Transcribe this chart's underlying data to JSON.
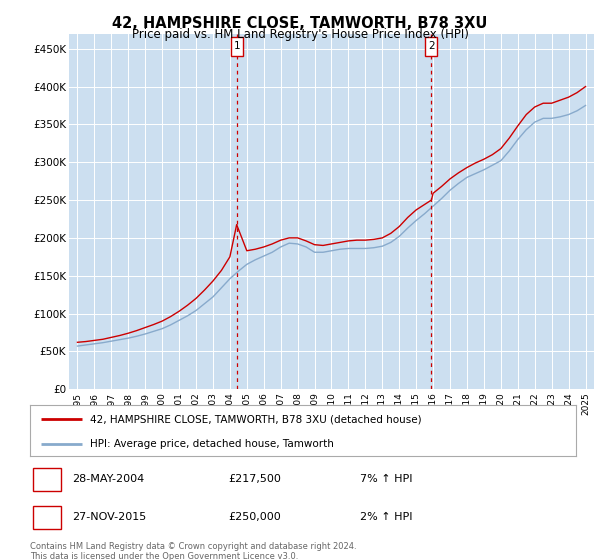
{
  "title": "42, HAMPSHIRE CLOSE, TAMWORTH, B78 3XU",
  "subtitle": "Price paid vs. HM Land Registry's House Price Index (HPI)",
  "ylabel_ticks": [
    "£0",
    "£50K",
    "£100K",
    "£150K",
    "£200K",
    "£250K",
    "£300K",
    "£350K",
    "£400K",
    "£450K"
  ],
  "ytick_values": [
    0,
    50000,
    100000,
    150000,
    200000,
    250000,
    300000,
    350000,
    400000,
    450000
  ],
  "ylim": [
    0,
    470000
  ],
  "xlim_start": 1994.5,
  "xlim_end": 2025.5,
  "background_color": "#ffffff",
  "plot_bg_color": "#ccdff0",
  "grid_color": "#ffffff",
  "red_line_color": "#cc0000",
  "blue_line_color": "#88aacc",
  "transaction1_x": 2004.4,
  "transaction1_y": 217500,
  "transaction1_label": "1",
  "transaction1_date": "28-MAY-2004",
  "transaction1_price": "£217,500",
  "transaction1_hpi": "7% ↑ HPI",
  "transaction2_x": 2015.9,
  "transaction2_y": 250000,
  "transaction2_label": "2",
  "transaction2_date": "27-NOV-2015",
  "transaction2_price": "£250,000",
  "transaction2_hpi": "2% ↑ HPI",
  "legend_line1": "42, HAMPSHIRE CLOSE, TAMWORTH, B78 3XU (detached house)",
  "legend_line2": "HPI: Average price, detached house, Tamworth",
  "footer1": "Contains HM Land Registry data © Crown copyright and database right 2024.",
  "footer2": "This data is licensed under the Open Government Licence v3.0.",
  "hpi_years": [
    1995,
    1995.5,
    1996,
    1996.5,
    1997,
    1997.5,
    1998,
    1998.5,
    1999,
    1999.5,
    2000,
    2000.5,
    2001,
    2001.5,
    2002,
    2002.5,
    2003,
    2003.5,
    2004,
    2004.5,
    2005,
    2005.5,
    2006,
    2006.5,
    2007,
    2007.5,
    2008,
    2008.5,
    2009,
    2009.5,
    2010,
    2010.5,
    2011,
    2011.5,
    2012,
    2012.5,
    2013,
    2013.5,
    2014,
    2014.5,
    2015,
    2015.5,
    2016,
    2016.5,
    2017,
    2017.5,
    2018,
    2018.5,
    2019,
    2019.5,
    2020,
    2020.5,
    2021,
    2021.5,
    2022,
    2022.5,
    2023,
    2023.5,
    2024,
    2024.5,
    2025
  ],
  "hpi_values": [
    57000,
    58500,
    60000,
    61500,
    63500,
    65500,
    67500,
    70000,
    73000,
    76500,
    80000,
    85000,
    91000,
    97000,
    104000,
    113000,
    122000,
    134000,
    146000,
    156000,
    165000,
    171000,
    176000,
    181000,
    188000,
    193000,
    192000,
    188000,
    181000,
    181000,
    183000,
    185000,
    186000,
    186000,
    186000,
    187000,
    189000,
    194000,
    202000,
    213000,
    223000,
    232000,
    242000,
    252000,
    263000,
    272000,
    280000,
    285000,
    290000,
    296000,
    302000,
    315000,
    330000,
    343000,
    353000,
    358000,
    358000,
    360000,
    363000,
    368000,
    375000
  ],
  "price_years": [
    1995,
    1995.5,
    1996,
    1996.5,
    1997,
    1997.5,
    1998,
    1998.5,
    1999,
    1999.5,
    2000,
    2000.5,
    2001,
    2001.5,
    2002,
    2002.5,
    2003,
    2003.5,
    2004,
    2004.4,
    2005,
    2005.5,
    2006,
    2006.5,
    2007,
    2007.5,
    2008,
    2008.5,
    2009,
    2009.5,
    2010,
    2010.5,
    2011,
    2011.5,
    2012,
    2012.5,
    2013,
    2013.5,
    2014,
    2014.5,
    2015,
    2015.9,
    2016,
    2016.5,
    2017,
    2017.5,
    2018,
    2018.5,
    2019,
    2019.5,
    2020,
    2020.5,
    2021,
    2021.5,
    2022,
    2022.5,
    2023,
    2023.5,
    2024,
    2024.5,
    2025
  ],
  "price_values": [
    62000,
    63000,
    64500,
    66000,
    68500,
    71000,
    74000,
    77500,
    81500,
    85500,
    90000,
    96000,
    103000,
    111000,
    120000,
    131000,
    143000,
    157000,
    175000,
    217500,
    183000,
    185000,
    188000,
    192000,
    197000,
    200000,
    200000,
    196000,
    191000,
    190000,
    192000,
    194000,
    196000,
    197000,
    197000,
    198000,
    200000,
    206000,
    215000,
    227000,
    237000,
    250000,
    259000,
    268000,
    278000,
    286000,
    293000,
    299000,
    304000,
    310000,
    318000,
    332000,
    348000,
    363000,
    373000,
    378000,
    378000,
    382000,
    386000,
    392000,
    400000
  ]
}
